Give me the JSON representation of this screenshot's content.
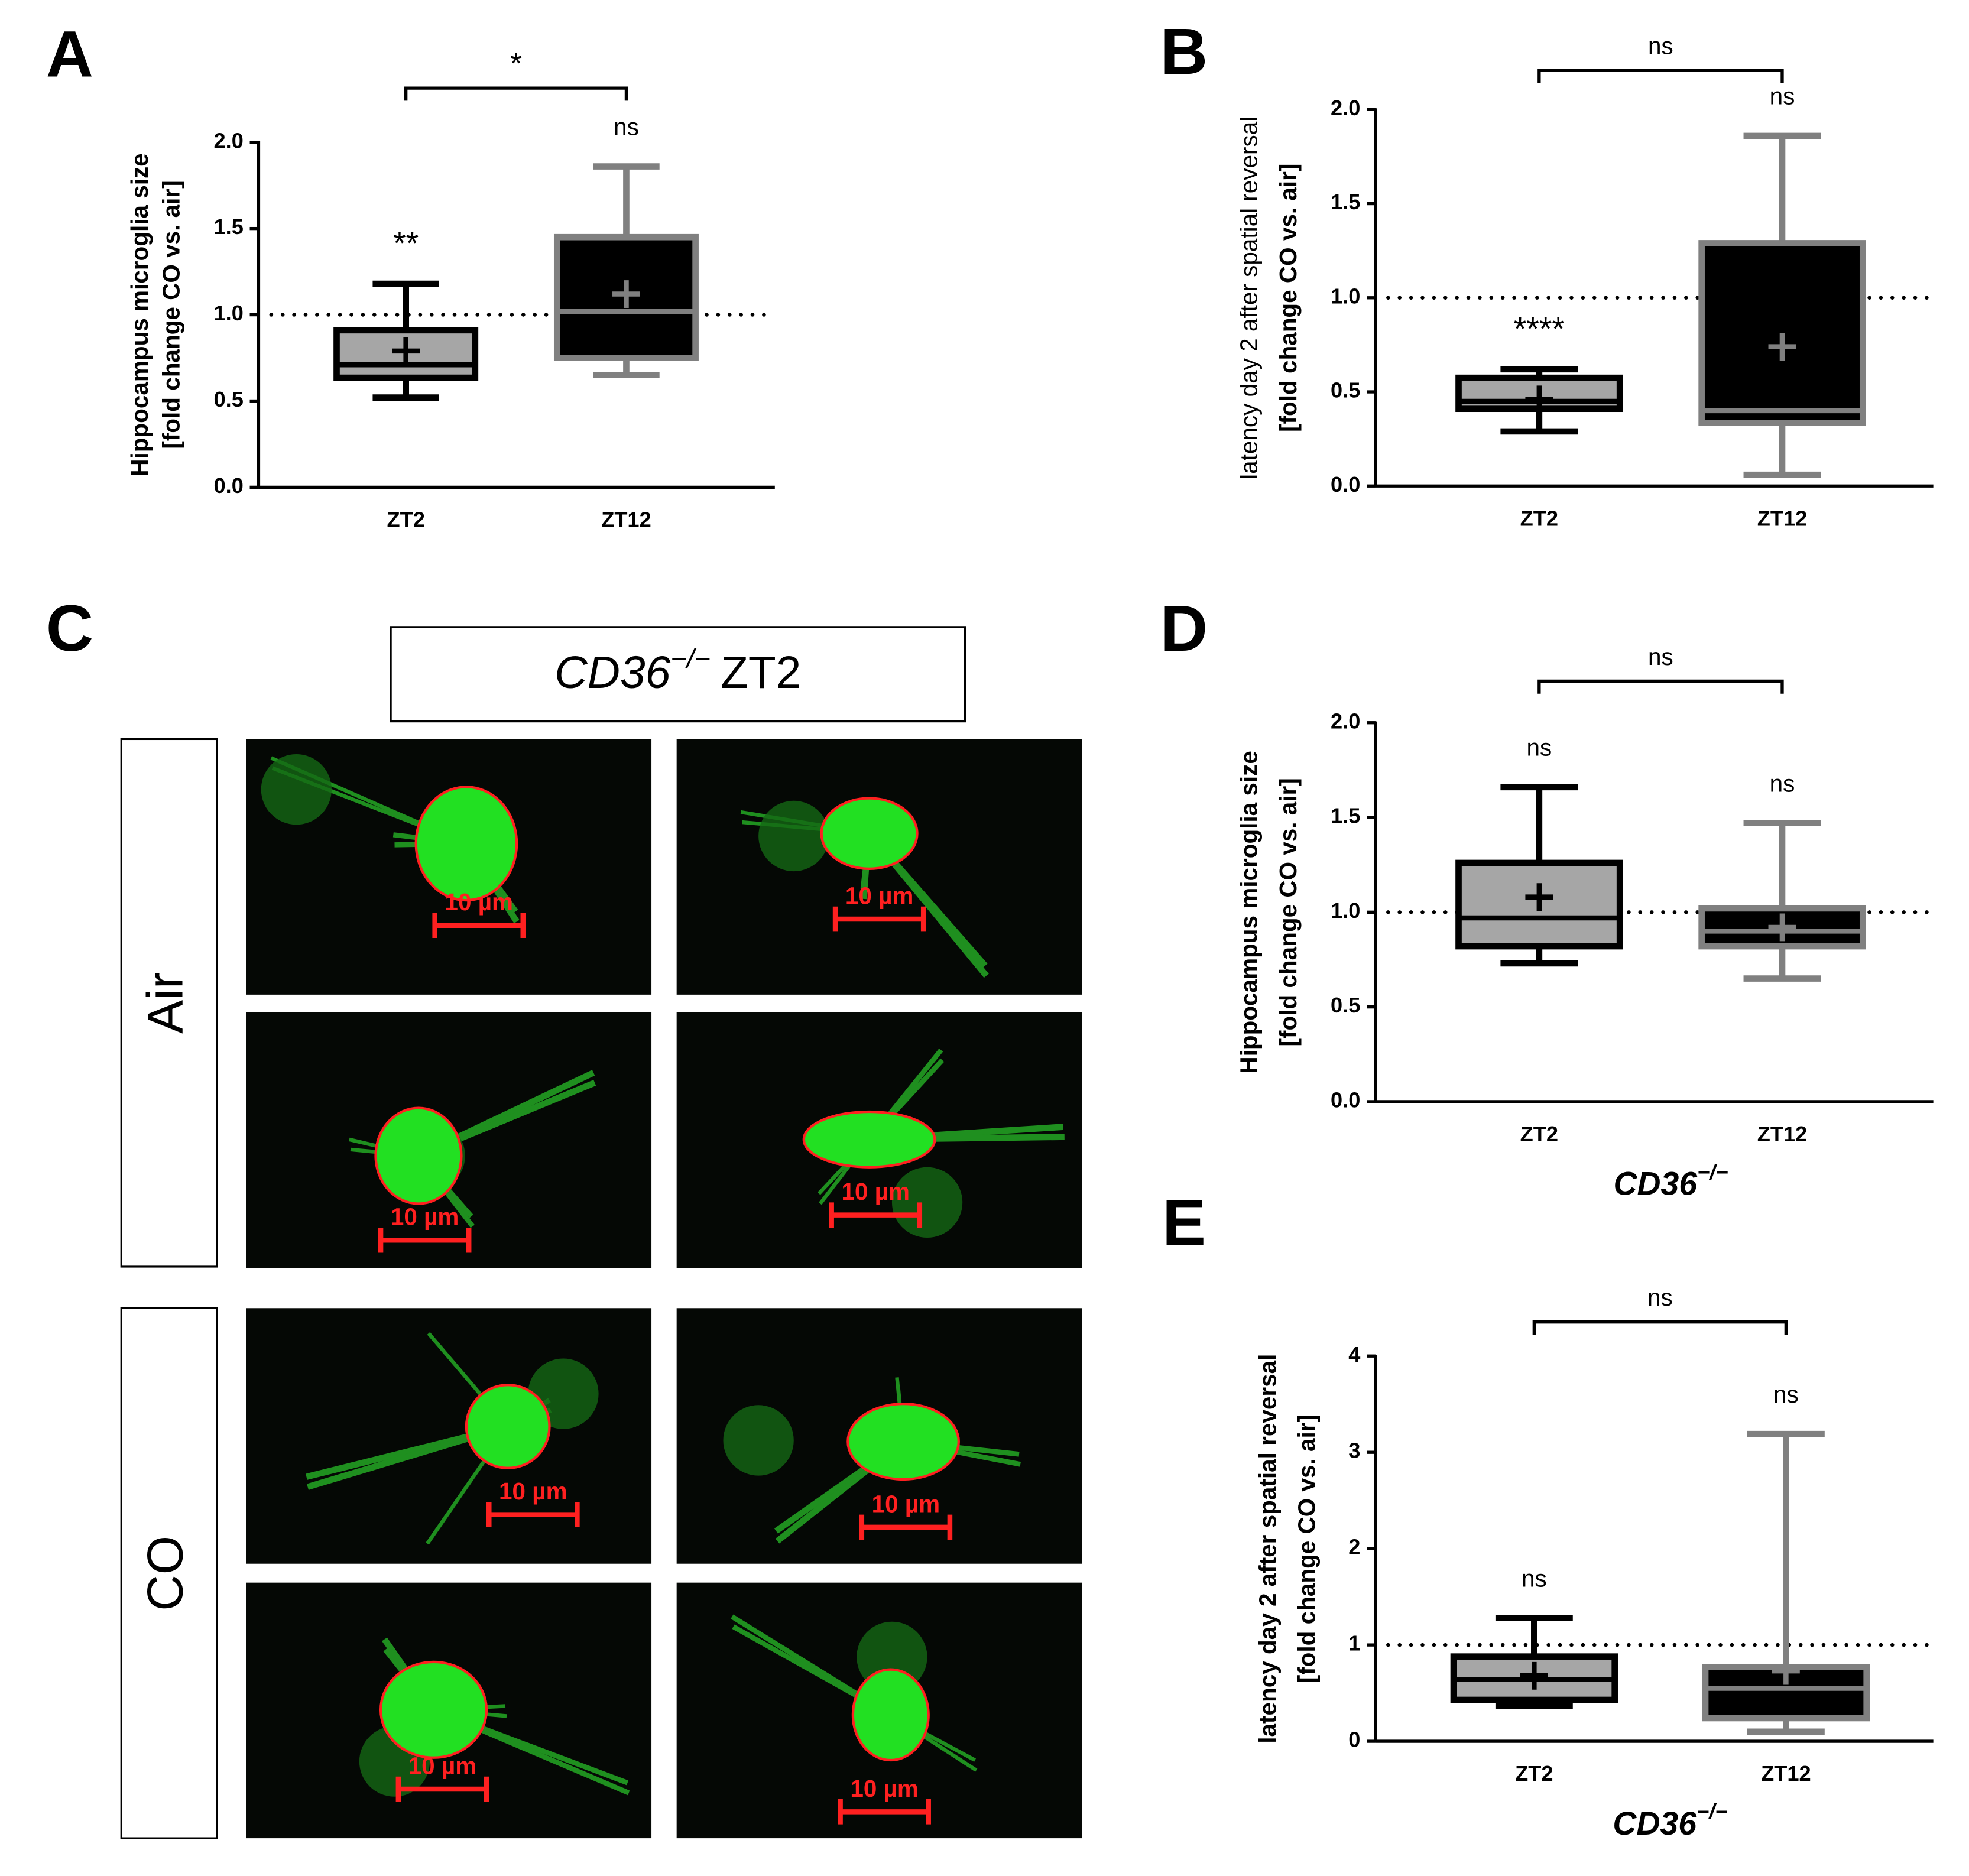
{
  "chart_data": [
    {
      "type": "box",
      "panel": "A",
      "ylabel": [
        "Hippocampus microglia size",
        "[fold change CO vs. air]"
      ],
      "categories": [
        "ZT2",
        "ZT12"
      ],
      "boxes": [
        {
          "min": 0.52,
          "q1": 0.635,
          "median": 0.71,
          "q3": 0.91,
          "max": 1.18,
          "mean": 0.79,
          "fill": "#a6a6a6",
          "color": "#000000"
        },
        {
          "min": 0.65,
          "q1": 0.75,
          "median": 1.02,
          "q3": 1.45,
          "max": 1.86,
          "mean": 1.12,
          "fill": "#000000",
          "color": "#808080"
        }
      ],
      "annotations": [
        "**",
        "ns"
      ],
      "bracket_label": "*",
      "reference_line": 1,
      "ylim": [
        0,
        2
      ],
      "yticks": [
        {
          "value": 0,
          "label": "0.0"
        },
        {
          "value": 0.5,
          "label": "0.5"
        },
        {
          "value": 1,
          "label": "1.0"
        },
        {
          "value": 1.5,
          "label": "1.5"
        },
        {
          "value": 2,
          "label": "2.0"
        }
      ]
    },
    {
      "type": "box",
      "panel": "B",
      "ylabel": [
        "latency day 2 after spatial reversal",
        "[fold change CO vs. air]"
      ],
      "categories": [
        "ZT2",
        "ZT12"
      ],
      "boxes": [
        {
          "min": 0.29,
          "q1": 0.41,
          "median": 0.45,
          "q3": 0.575,
          "max": 0.62,
          "mean": 0.46,
          "fill": "#a6a6a6",
          "color": "#000000"
        },
        {
          "min": 0.06,
          "q1": 0.335,
          "median": 0.4,
          "q3": 1.29,
          "max": 1.86,
          "mean": 0.74,
          "fill": "#000000",
          "color": "#808080"
        }
      ],
      "annotations": [
        "****",
        "ns"
      ],
      "bracket_label": "ns",
      "reference_line": 1,
      "ylim": [
        0,
        2
      ],
      "yticks": [
        {
          "value": 0,
          "label": "0.0"
        },
        {
          "value": 0.5,
          "label": "0.5"
        },
        {
          "value": 1,
          "label": "1.0"
        },
        {
          "value": 1.5,
          "label": "1.5"
        },
        {
          "value": 2,
          "label": "2.0"
        }
      ]
    },
    {
      "type": "box",
      "panel": "D",
      "ylabel": [
        "Hippocampus microglia size",
        "[fold change CO vs. air]"
      ],
      "categories": [
        "ZT2",
        "ZT12"
      ],
      "xlabel": {
        "text": "CD36",
        "superscript": "−/−"
      },
      "boxes": [
        {
          "min": 0.73,
          "q1": 0.82,
          "median": 0.97,
          "q3": 1.26,
          "max": 1.66,
          "mean": 1.08,
          "fill": "#a6a6a6",
          "color": "#000000"
        },
        {
          "min": 0.65,
          "q1": 0.82,
          "median": 0.9,
          "q3": 1.02,
          "max": 1.47,
          "mean": 0.92,
          "fill": "#000000",
          "color": "#808080"
        }
      ],
      "annotations": [
        "ns",
        "ns"
      ],
      "bracket_label": "ns",
      "reference_line": 1,
      "ylim": [
        0,
        2
      ],
      "yticks": [
        {
          "value": 0,
          "label": "0.0"
        },
        {
          "value": 0.5,
          "label": "0.5"
        },
        {
          "value": 1,
          "label": "1.0"
        },
        {
          "value": 1.5,
          "label": "1.5"
        },
        {
          "value": 2,
          "label": "2.0"
        }
      ]
    },
    {
      "type": "box",
      "panel": "E",
      "ylabel": [
        "latency day 2 after spatial reversal",
        "[fold change CO vs. air]"
      ],
      "categories": [
        "ZT2",
        "ZT12"
      ],
      "xlabel": {
        "text": "CD36",
        "superscript": "−/−"
      },
      "boxes": [
        {
          "min": 0.37,
          "q1": 0.43,
          "median": 0.64,
          "q3": 0.88,
          "max": 1.28,
          "mean": 0.68,
          "fill": "#a6a6a6",
          "color": "#000000"
        },
        {
          "min": 0.1,
          "q1": 0.24,
          "median": 0.55,
          "q3": 0.77,
          "max": 3.19,
          "mean": 0.73,
          "fill": "#000000",
          "color": "#808080"
        }
      ],
      "annotations": [
        "ns",
        "ns"
      ],
      "bracket_label": "ns",
      "reference_line": 1,
      "ylim": [
        0,
        4
      ],
      "yticks": [
        0,
        1,
        2,
        3,
        4
      ]
    }
  ],
  "panel_c": {
    "panel": "C",
    "title": {
      "italic": "CD36",
      "superscript": "−/−",
      "rest": "ZT2"
    },
    "rows": [
      "Air",
      "CO"
    ],
    "scale_labels": [
      "10 µm",
      "10 µm",
      "10 µm",
      "10 µm",
      "10 µm",
      "10 µm",
      "10 µm",
      "10 µm"
    ]
  }
}
